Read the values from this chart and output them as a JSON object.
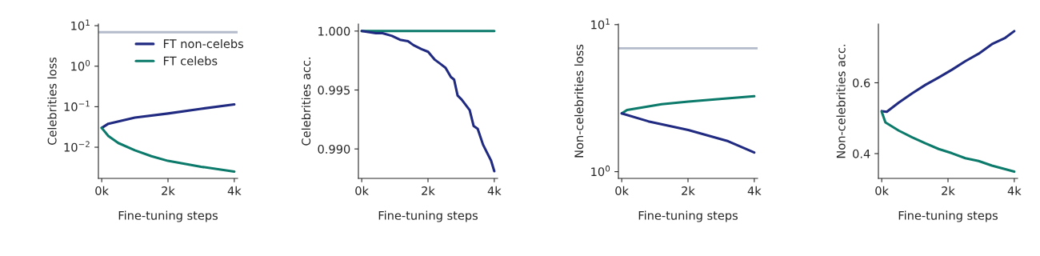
{
  "chart_data": [
    {
      "type": "line",
      "xlabel": "Fine-tuning steps",
      "ylabel": "Celebrities loss",
      "log": "y",
      "legend": "top right",
      "grid": false,
      "xlim": [
        -100,
        4100
      ],
      "xticks": [
        {
          "value": 0,
          "label": "0k"
        },
        {
          "value": 2000,
          "label": "2k"
        },
        {
          "value": 4000,
          "label": "4k"
        }
      ],
      "ylim": [
        0.0017,
        11
      ],
      "yticks": [
        {
          "value": 0.01,
          "label": "10$^{−2}$"
        },
        {
          "value": 0.1,
          "label": "10$^{−1}$"
        },
        {
          "value": 1,
          "label": "10$^{0}$"
        },
        {
          "value": 10,
          "label": "10$^{1}$"
        }
      ],
      "ref_lines": [
        {
          "axis": "y",
          "value": 6.9,
          "color": "#b4bccb"
        }
      ],
      "series": [
        {
          "name": "FT non-celebs",
          "color": "#1f2a80",
          "x": [
            0,
            200,
            1000,
            2000,
            3000,
            4000
          ],
          "values": [
            0.03,
            0.038,
            0.054,
            0.068,
            0.089,
            0.114
          ]
        },
        {
          "name": "FT celebs",
          "color": "#0b7a6a",
          "x": [
            0,
            200,
            500,
            1000,
            1500,
            2000,
            3000,
            4000
          ],
          "values": [
            0.03,
            0.019,
            0.0127,
            0.0084,
            0.006,
            0.0046,
            0.0033,
            0.0025
          ]
        }
      ]
    },
    {
      "type": "line",
      "xlabel": "Fine-tuning steps",
      "ylabel": "Celebrities acc.",
      "grid": false,
      "xlim": [
        -100,
        4100
      ],
      "xticks": [
        {
          "value": 0,
          "label": "0k"
        },
        {
          "value": 2000,
          "label": "2k"
        },
        {
          "value": 4000,
          "label": "4k"
        }
      ],
      "ylim": [
        0.9875,
        1.0006
      ],
      "yticks": [
        {
          "value": 0.99,
          "label": "0.990"
        },
        {
          "value": 0.995,
          "label": "0.995"
        },
        {
          "value": 1.0,
          "label": "1.000"
        }
      ],
      "series": [
        {
          "color": "#0b7a6a",
          "x": [
            0,
            1000,
            2000,
            3000,
            4000
          ],
          "values": [
            1.0,
            1.0,
            1.0,
            1.0,
            1.0
          ]
        },
        {
          "color": "#1f2a80",
          "x": [
            0,
            428,
            630,
            913,
            1156,
            1398,
            1560,
            1802,
            2004,
            2206,
            2368,
            2529,
            2691,
            2788,
            2893,
            3014,
            3257,
            3378,
            3499,
            3661,
            3782,
            3903,
            4000
          ],
          "values": [
            1.0,
            0.99982,
            0.99982,
            0.99959,
            0.99926,
            0.99914,
            0.99881,
            0.99847,
            0.99824,
            0.99757,
            0.99723,
            0.99689,
            0.9961,
            0.99588,
            0.99453,
            0.99419,
            0.99329,
            0.99194,
            0.99171,
            0.99036,
            0.98968,
            0.98901,
            0.98811
          ]
        }
      ]
    },
    {
      "type": "line",
      "xlabel": "Fine-tuning steps",
      "ylabel": "Non-celebrities loss",
      "log": "y",
      "grid": false,
      "xlim": [
        -100,
        4100
      ],
      "xticks": [
        {
          "value": 0,
          "label": "0k"
        },
        {
          "value": 2000,
          "label": "2k"
        },
        {
          "value": 4000,
          "label": "4k"
        }
      ],
      "ylim": [
        0.9,
        10.1
      ],
      "yticks": [
        {
          "value": 1,
          "label": "10$^{0}$"
        },
        {
          "value": 10,
          "label": "10$^{1}$"
        }
      ],
      "ref_lines": [
        {
          "axis": "y",
          "value": 6.9,
          "color": "#b4bccb"
        }
      ],
      "series": [
        {
          "color": "#0b7a6a",
          "x": [
            0,
            161,
            1205,
            2008,
            2811,
            4000
          ],
          "values": [
            2.49,
            2.63,
            2.88,
            3.0,
            3.1,
            3.26
          ]
        },
        {
          "color": "#1f2a80",
          "x": [
            0,
            803,
            2008,
            3213,
            4000
          ],
          "values": [
            2.49,
            2.2,
            1.92,
            1.61,
            1.35
          ]
        }
      ]
    },
    {
      "type": "line",
      "xlabel": "Fine-tuning steps",
      "ylabel": "Non-celebrities acc.",
      "grid": false,
      "xlim": [
        -100,
        4100
      ],
      "xticks": [
        {
          "value": 0,
          "label": "0k"
        },
        {
          "value": 2000,
          "label": "2k"
        },
        {
          "value": 4000,
          "label": "4k"
        }
      ],
      "ylim": [
        0.33,
        0.766
      ],
      "yticks": [
        0.4,
        0.6
      ],
      "series": [
        {
          "color": "#1f2a80",
          "x": [
            0,
            153,
            514,
            916,
            1317,
            1719,
            2120,
            2522,
            2924,
            3325,
            3727,
            4000
          ],
          "values": [
            0.52,
            0.518,
            0.544,
            0.57,
            0.594,
            0.615,
            0.637,
            0.661,
            0.682,
            0.709,
            0.727,
            0.746
          ]
        },
        {
          "color": "#0b7a6a",
          "x": [
            0,
            112,
            514,
            916,
            1317,
            1719,
            2120,
            2522,
            2924,
            3325,
            4000
          ],
          "values": [
            0.518,
            0.488,
            0.465,
            0.446,
            0.429,
            0.413,
            0.401,
            0.387,
            0.379,
            0.366,
            0.349
          ]
        }
      ]
    }
  ]
}
